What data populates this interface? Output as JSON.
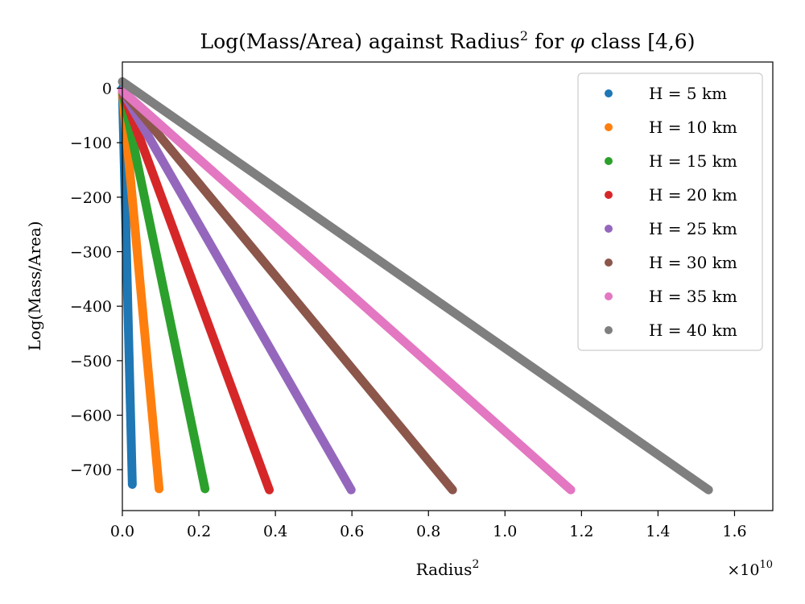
{
  "chart_data": {
    "type": "scatter",
    "title_parts": {
      "main": "Log(Mass/Area) against Radius",
      "sup": "2",
      "mid": " for ",
      "sym": "φ",
      "tail": " class [4,6)"
    },
    "xlabel": {
      "main": "Radius",
      "sup": "2"
    },
    "ylabel": "Log(Mass/Area)",
    "x_multiplier": {
      "prefix": "×10",
      "exp": "10"
    },
    "xlim": [
      0,
      1.7
    ],
    "ylim": [
      -775,
      48
    ],
    "x_ticks": [
      0.0,
      0.2,
      0.4,
      0.6,
      0.8,
      1.0,
      1.2,
      1.4,
      1.6
    ],
    "x_tick_labels": [
      "0.0",
      "0.2",
      "0.4",
      "0.6",
      "0.8",
      "1.0",
      "1.2",
      "1.4",
      "1.6"
    ],
    "y_ticks": [
      0,
      -100,
      -200,
      -300,
      -400,
      -500,
      -600,
      -700
    ],
    "y_tick_labels": [
      "0",
      "−100",
      "−200",
      "−300",
      "−400",
      "−500",
      "−600",
      "−700"
    ],
    "grid": false,
    "legend_position": "top-right",
    "series": [
      {
        "name": "H = 5 km",
        "color": "#1f77b4",
        "x_end": 0.026,
        "y_start": 0,
        "y_end": -727
      },
      {
        "name": "H = 10 km",
        "color": "#ff7f0e",
        "x_end": 0.096,
        "y_start": -5,
        "y_end": -735
      },
      {
        "name": "H = 15 km",
        "color": "#2ca02c",
        "x_end": 0.216,
        "y_start": -5,
        "y_end": -735
      },
      {
        "name": "H = 20 km",
        "color": "#d62728",
        "x_end": 0.384,
        "y_start": -5,
        "y_end": -737
      },
      {
        "name": "H = 25 km",
        "color": "#9467bd",
        "x_end": 0.598,
        "y_start": -5,
        "y_end": -737
      },
      {
        "name": "H = 30 km",
        "color": "#8c564b",
        "x_end": 0.863,
        "y_start": -5,
        "y_end": -737
      },
      {
        "name": "H = 35 km",
        "color": "#e377c2",
        "x_end": 1.172,
        "y_start": -5,
        "y_end": -737
      },
      {
        "name": "H = 40 km",
        "color": "#7f7f7f",
        "x_end": 1.532,
        "y_start": 12,
        "y_end": -737
      }
    ]
  }
}
